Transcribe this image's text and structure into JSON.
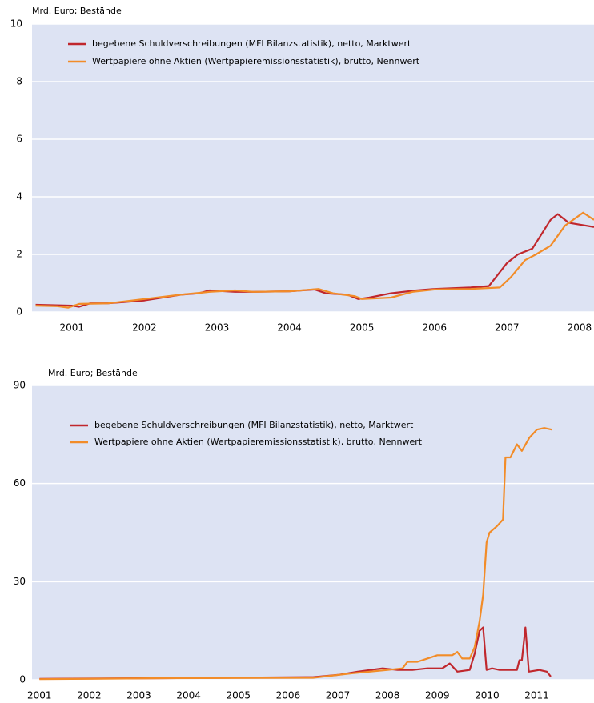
{
  "chart_data": [
    {
      "type": "line",
      "ylabel": "Mrd. Euro; Bestände",
      "xlim": [
        2000.95,
        2008.7
      ],
      "ylim": [
        0,
        10
      ],
      "yticks": [
        0,
        2,
        4,
        6,
        8,
        10
      ],
      "grid": true,
      "legend": "upper left",
      "xticks": [
        {
          "value": 2001.5,
          "label": "2001"
        },
        {
          "value": 2002.5,
          "label": "2002"
        },
        {
          "value": 2003.5,
          "label": "2003"
        },
        {
          "value": 2004.5,
          "label": "2004"
        },
        {
          "value": 2005.5,
          "label": "2005"
        },
        {
          "value": 2006.5,
          "label": "2006"
        },
        {
          "value": 2007.5,
          "label": "2007"
        },
        {
          "value": 2008.5,
          "label": "2008"
        }
      ],
      "series": [
        {
          "name": "begebene Schuldverschreibungen (MFI Bilanzstatistik), netto, Marktwert",
          "color": "#c0272d",
          "x": [
            2001.0,
            2001.5,
            2001.6,
            2001.75,
            2002.0,
            2002.5,
            2003.0,
            2003.25,
            2003.4,
            2003.75,
            2004.0,
            2004.5,
            2004.85,
            2005.0,
            2005.3,
            2005.45,
            2005.6,
            2005.9,
            2006.25,
            2006.5,
            2007.0,
            2007.25,
            2007.5,
            2007.65,
            2007.85,
            2008.1,
            2008.2,
            2008.35,
            2008.7
          ],
          "values": [
            0.25,
            0.22,
            0.18,
            0.3,
            0.3,
            0.4,
            0.6,
            0.65,
            0.75,
            0.7,
            0.7,
            0.72,
            0.78,
            0.65,
            0.6,
            0.45,
            0.5,
            0.65,
            0.75,
            0.8,
            0.85,
            0.9,
            1.7,
            2.0,
            2.2,
            3.2,
            3.4,
            3.1,
            2.95
          ]
        },
        {
          "name": "Wertpapiere ohne Aktien (Wertpapieremissionsstatistik), brutto, Nennwert",
          "color": "#f28c28",
          "x": [
            2001.0,
            2001.3,
            2001.45,
            2001.6,
            2002.0,
            2002.5,
            2003.0,
            2003.4,
            2003.75,
            2004.0,
            2004.5,
            2004.9,
            2005.1,
            2005.4,
            2005.5,
            2005.9,
            2006.2,
            2006.5,
            2007.0,
            2007.4,
            2007.55,
            2007.75,
            2007.9,
            2008.1,
            2008.3,
            2008.55,
            2008.7
          ],
          "values": [
            0.22,
            0.2,
            0.15,
            0.28,
            0.3,
            0.45,
            0.6,
            0.7,
            0.75,
            0.7,
            0.72,
            0.8,
            0.65,
            0.55,
            0.45,
            0.5,
            0.7,
            0.78,
            0.8,
            0.85,
            1.2,
            1.8,
            2.0,
            2.3,
            3.0,
            3.45,
            3.2
          ]
        }
      ]
    },
    {
      "type": "line",
      "ylabel": "Mrd. Euro; Bestände",
      "xlim": [
        2001.35,
        2012.65
      ],
      "ylim": [
        0,
        90
      ],
      "yticks": [
        0,
        30,
        60,
        90
      ],
      "grid": true,
      "legend": "upper left",
      "xticks": [
        {
          "value": 2001.5,
          "label": "2001"
        },
        {
          "value": 2002.5,
          "label": "2002"
        },
        {
          "value": 2003.5,
          "label": "2003"
        },
        {
          "value": 2004.5,
          "label": "2004"
        },
        {
          "value": 2005.5,
          "label": "2005"
        },
        {
          "value": 2006.5,
          "label": "2006"
        },
        {
          "value": 2007.5,
          "label": "2007"
        },
        {
          "value": 2008.5,
          "label": "2008"
        },
        {
          "value": 2009.5,
          "label": "2009"
        },
        {
          "value": 2010.5,
          "label": "2010"
        },
        {
          "value": 2011.5,
          "label": "2011"
        }
      ],
      "series": [
        {
          "name": "begebene Schuldverschreibungen (MFI Bilanzstatistik), netto, Marktwert",
          "color": "#c0272d",
          "x": [
            2001.5,
            2004,
            2007,
            2007.5,
            2007.9,
            2008.4,
            2008.7,
            2009.0,
            2009.3,
            2009.6,
            2009.75,
            2009.9,
            2010.15,
            2010.25,
            2010.35,
            2010.42,
            2010.49,
            2010.6,
            2010.75,
            2011.1,
            2011.15,
            2011.2,
            2011.27,
            2011.34,
            2011.55,
            2011.7,
            2011.78
          ],
          "values": [
            0.3,
            0.5,
            0.8,
            1.5,
            2.5,
            3.5,
            3,
            3,
            3.5,
            3.5,
            5,
            2.5,
            3,
            8,
            15,
            16,
            3,
            3.5,
            3,
            3,
            6,
            6,
            16,
            2.5,
            3,
            2.5,
            1
          ]
        },
        {
          "name": "Wertpapiere ohne Aktien (Wertpapieremissionsstatistik), brutto, Nennwert",
          "color": "#f28c28",
          "x": [
            2001.5,
            2004,
            2007,
            2007.8,
            2008.5,
            2008.8,
            2008.9,
            2009.1,
            2009.3,
            2009.5,
            2009.8,
            2009.9,
            2010.0,
            2010.15,
            2010.25,
            2010.35,
            2010.42,
            2010.49,
            2010.55,
            2010.7,
            2010.82,
            2010.87,
            2010.97,
            2011.1,
            2011.2,
            2011.35,
            2011.5,
            2011.65,
            2011.8
          ],
          "values": [
            0.2,
            0.5,
            0.6,
            2,
            3,
            3.5,
            5.5,
            5.5,
            6.5,
            7.5,
            7.5,
            8.5,
            6.5,
            6.5,
            10,
            18,
            26,
            42,
            45,
            47,
            49,
            68,
            68,
            72,
            70,
            74,
            76.5,
            77,
            76.5
          ]
        }
      ]
    }
  ]
}
